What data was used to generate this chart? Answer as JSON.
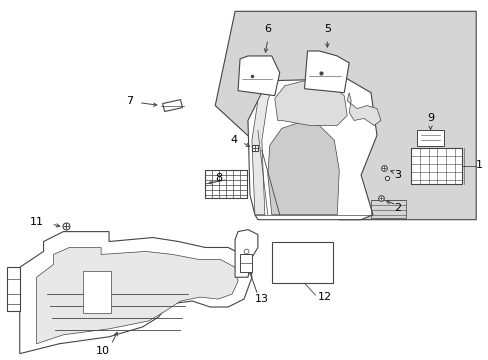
{
  "background_color": "#ffffff",
  "line_color": "#444444",
  "label_color": "#000000",
  "figsize": [
    4.89,
    3.6
  ],
  "dpi": 100
}
